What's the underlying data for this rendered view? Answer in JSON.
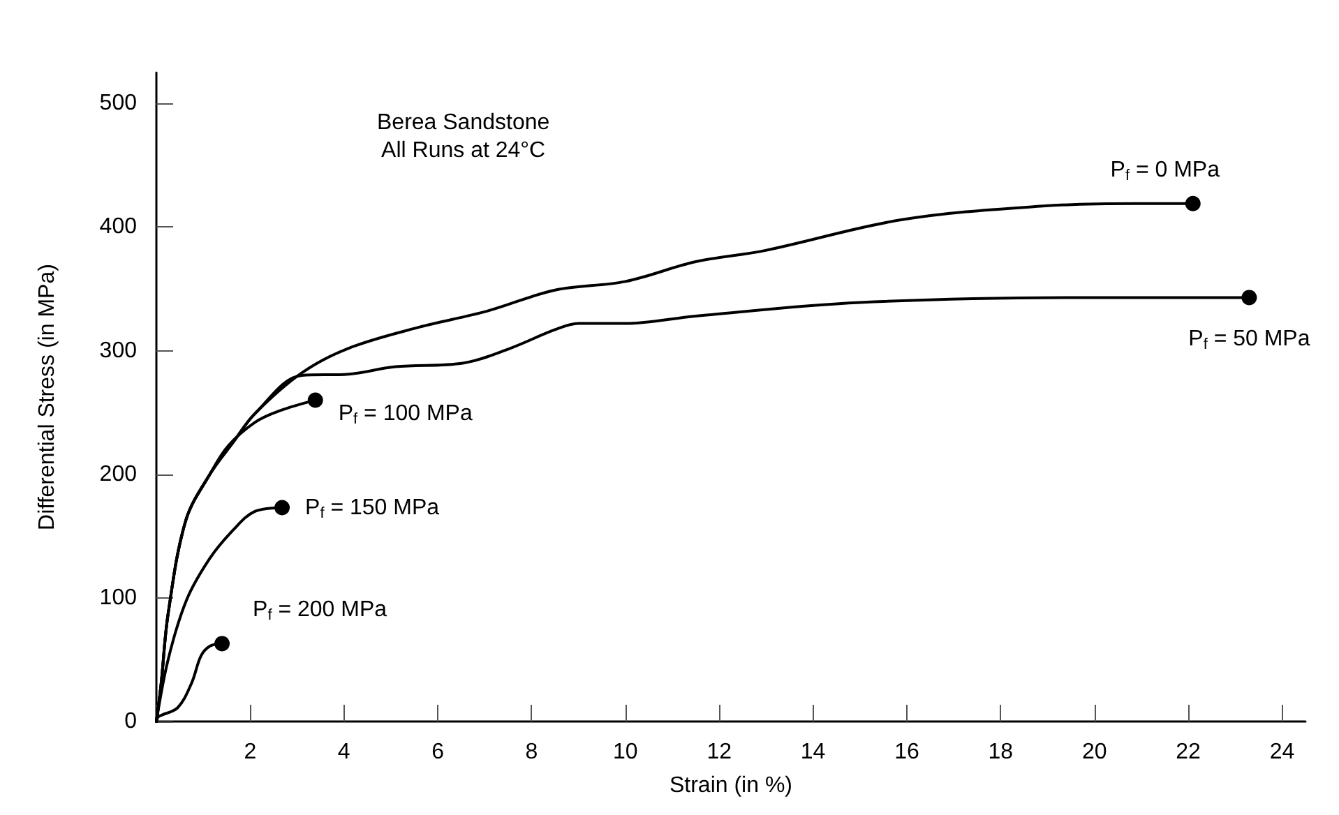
{
  "chart_data": {
    "type": "line",
    "xlabel": "Strain (in %)",
    "ylabel": "Differential Stress (in MPa)",
    "annotations": [
      "Berea Sandstone\nAll Runs at 24°C"
    ],
    "xlim": [
      0,
      24.5
    ],
    "xticks": [
      {
        "value": 0,
        "label": null
      },
      2,
      4,
      6,
      8,
      10,
      12,
      14,
      16,
      18,
      20,
      22,
      24
    ],
    "ylim": [
      0,
      525
    ],
    "yticks": [
      0,
      100,
      200,
      300,
      400,
      500
    ],
    "grid": false,
    "legend": false,
    "line_style": "solid",
    "series": [
      {
        "name": "P$_{f}$ = 0 MPa",
        "color": "#000000",
        "x": [
          0,
          0.1,
          0.25,
          0.63,
          1.14,
          1.64,
          2.1,
          3.1,
          4.1,
          5.6,
          7.05,
          8.5,
          10.0,
          11.5,
          12.97,
          15.9,
          18.9,
          20.9,
          22.1
        ],
        "values": [
          0,
          30,
          87,
          163,
          200,
          226,
          249,
          282,
          302,
          319,
          332,
          349,
          356,
          372,
          381,
          406,
          417,
          419,
          419
        ]
      },
      {
        "name": "P$_{f}$ = 50 MPa",
        "color": "#000000",
        "x": [
          0,
          0.1,
          0.25,
          0.63,
          1.14,
          1.64,
          2.1,
          3.1,
          4.1,
          5.1,
          6.55,
          7.55,
          8.5,
          9.0,
          10.0,
          11.5,
          15.0,
          19.9,
          23.3
        ],
        "values": [
          0,
          30,
          87,
          163,
          200,
          226,
          249,
          280,
          281,
          287,
          290,
          302,
          317,
          322,
          322,
          328,
          339,
          343,
          343
        ]
      },
      {
        "name": "P$_{f}$ = 100 MPa",
        "color": "#000000",
        "x": [
          0,
          0.1,
          0.25,
          0.63,
          1.14,
          1.53,
          2.1,
          2.6,
          3.39
        ],
        "values": [
          0,
          30,
          87,
          163,
          200,
          223,
          242,
          251,
          260
        ]
      },
      {
        "name": "P$_{f}$ = 150 MPa",
        "color": "#000000",
        "x": [
          0,
          0.25,
          0.64,
          1.14,
          1.64,
          2.1,
          2.68
        ],
        "values": [
          0,
          50,
          98,
          132,
          155,
          170,
          173
        ]
      },
      {
        "name": "P$_{f}$ = 200 MPa",
        "color": "#000000",
        "x": [
          0,
          0.05,
          0.45,
          0.75,
          0.95,
          1.14,
          1.4
        ],
        "values": [
          0,
          4,
          11,
          31,
          53,
          61,
          63
        ]
      }
    ]
  }
}
